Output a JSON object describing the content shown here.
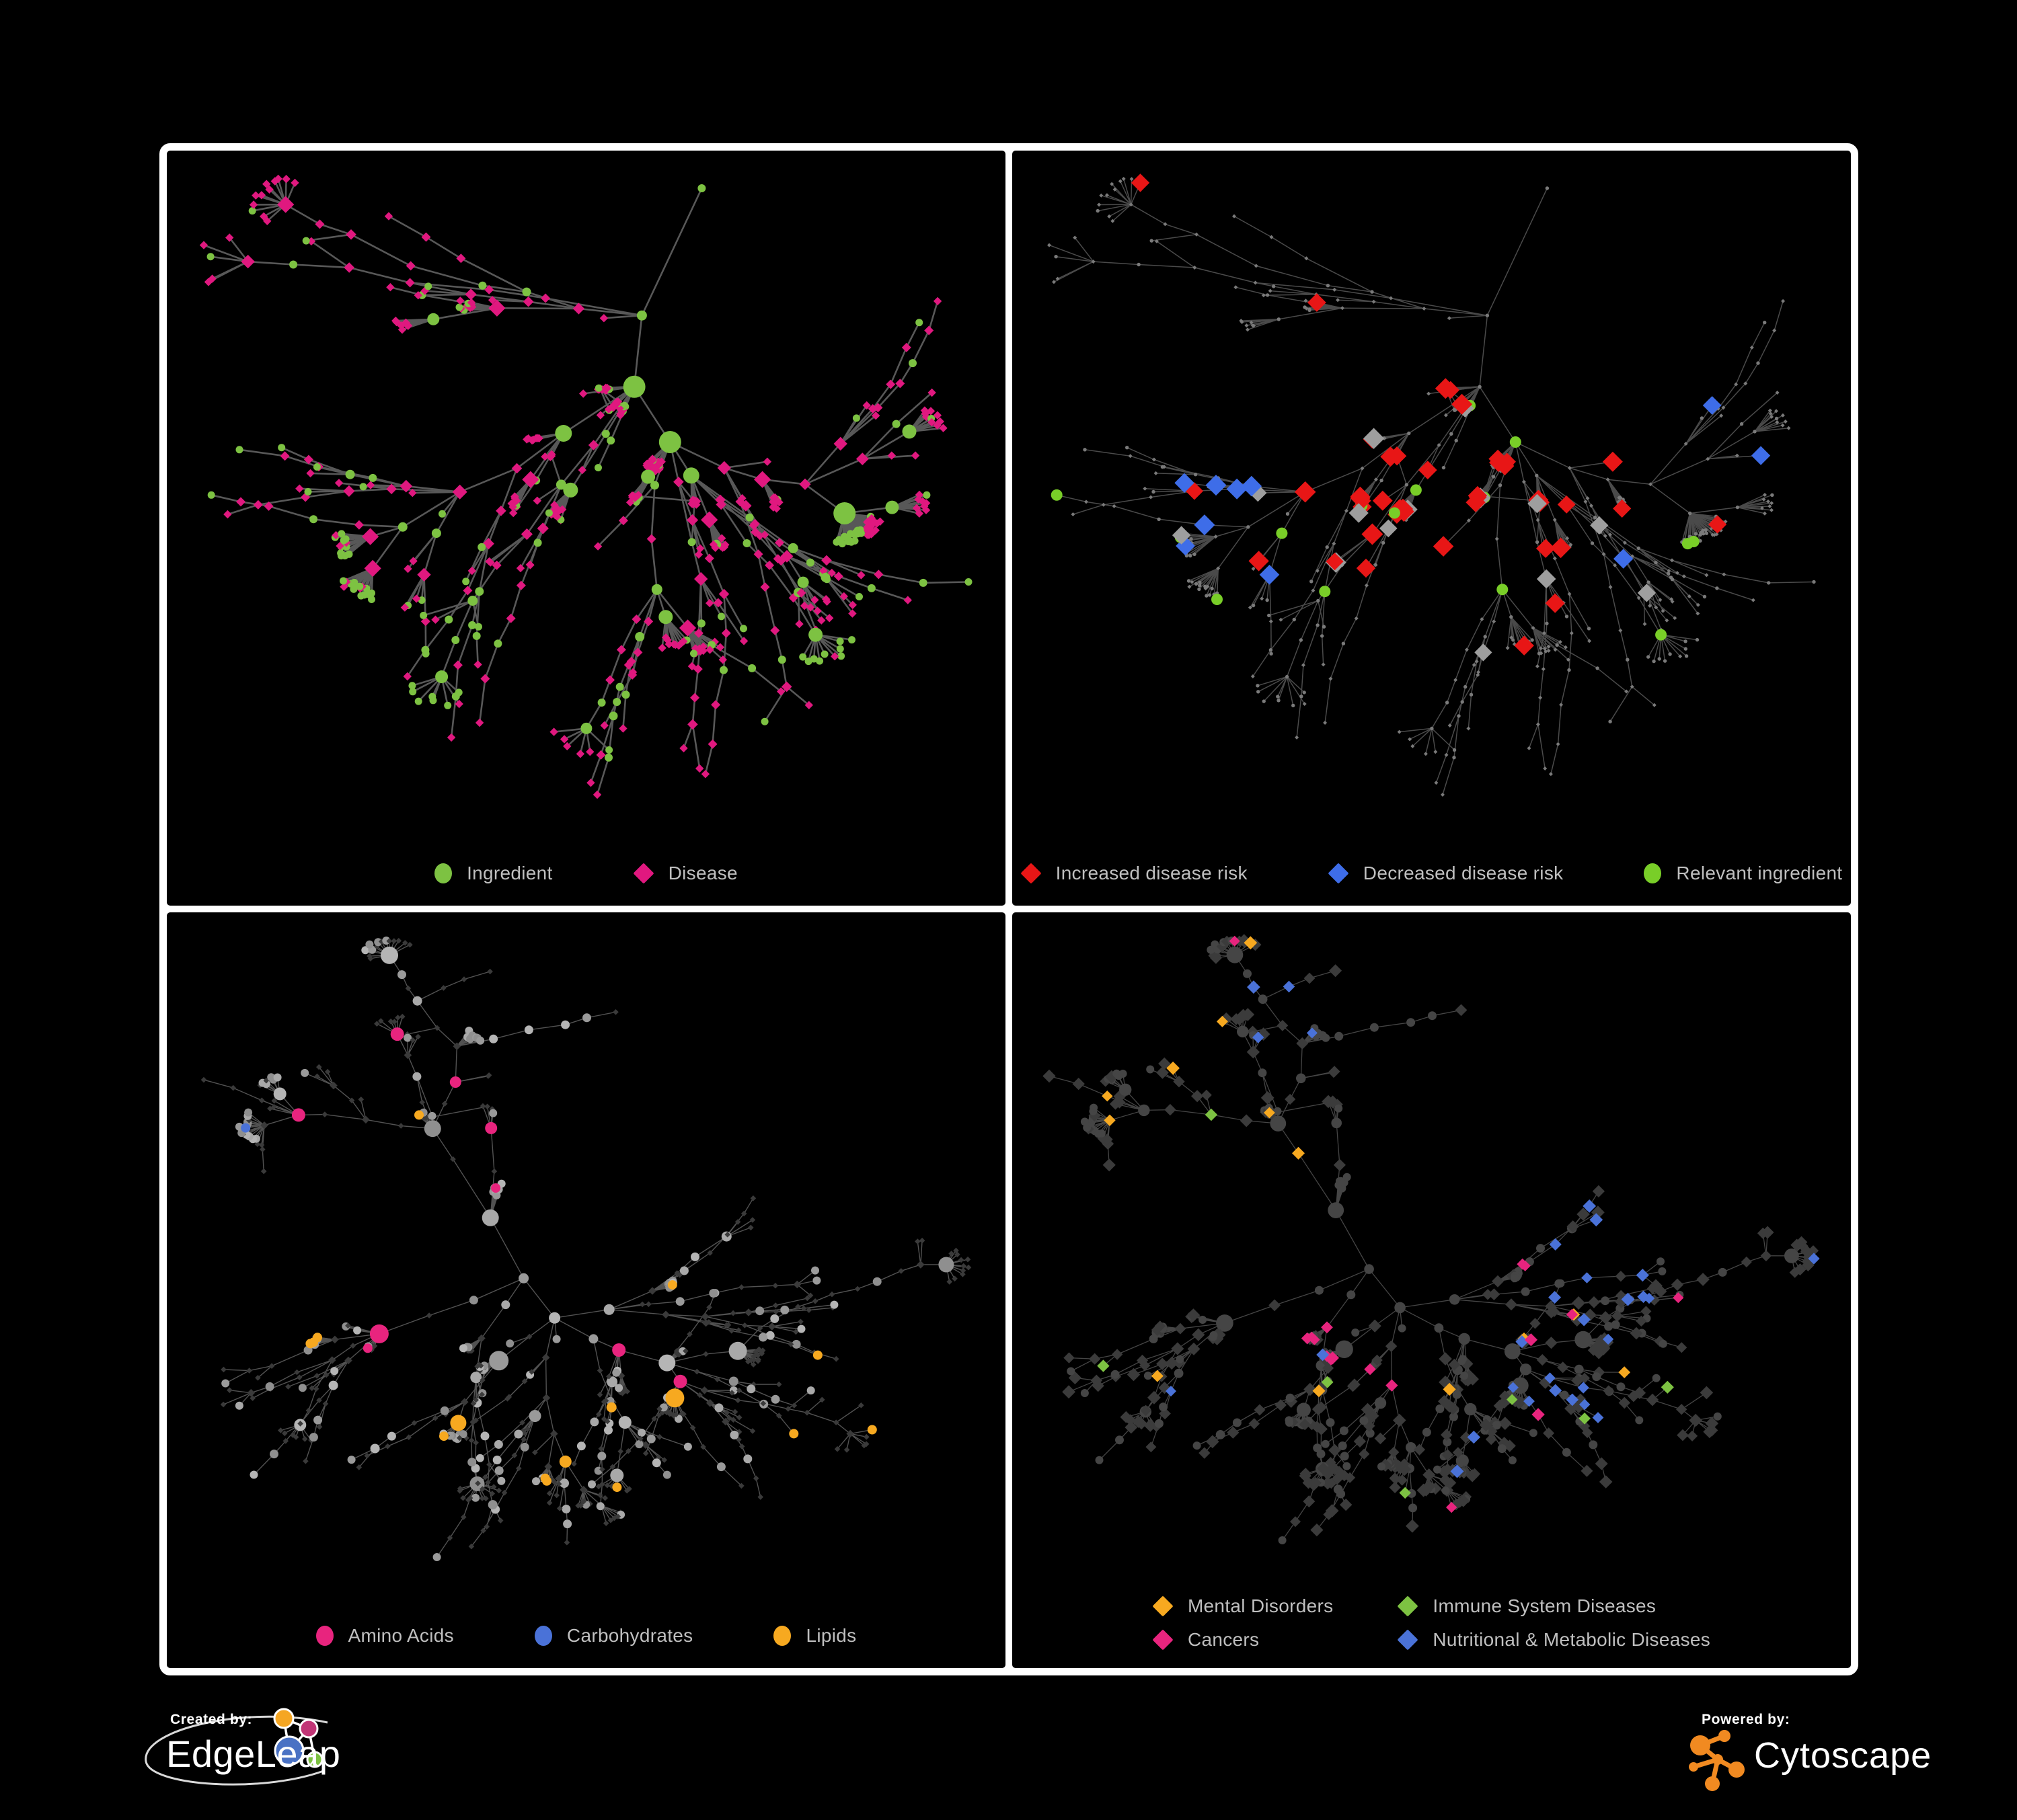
{
  "legend_text_color": "#BFBFBF",
  "graphs": {
    "g1": {
      "seed": 20,
      "nodes": 560,
      "cross": 16
    },
    "g2": {
      "seed": 63,
      "nodes": 620,
      "cross": 20
    }
  },
  "panels": [
    {
      "name": "ingredient-disease",
      "graph": "g1",
      "style": "types",
      "colors": {
        "ingredient": "#7DC242",
        "disease": "#E0187F",
        "edge": "#5D5D5D"
      },
      "legend": [
        {
          "label": "Ingredient",
          "shape": "circle",
          "color": "#7DC242"
        },
        {
          "label": "Disease",
          "shape": "diamond",
          "color": "#E0187F"
        }
      ]
    },
    {
      "name": "disease-risk",
      "graph": "g1",
      "style": "risk",
      "colors": {
        "increased": "#E81616",
        "decreased": "#3E6DE8",
        "no_change": "#9E9E9E",
        "relevant": "#79CE28",
        "base": "#7A7A7A",
        "edge": "#585858"
      },
      "legend": [
        {
          "label": "Increased disease risk",
          "shape": "diamond",
          "color": "#E81616"
        },
        {
          "label": "Decreased disease risk",
          "shape": "diamond",
          "color": "#3E6DE8"
        },
        {
          "label": "Relevant ingredient",
          "shape": "circle",
          "color": "#79CE28"
        }
      ]
    },
    {
      "name": "nutrient-classes",
      "graph": "g2",
      "style": "nutrients",
      "colors": {
        "amino_acids": "#E8247E",
        "carbohydrates": "#4A72D8",
        "lipids": "#F7A920",
        "ingredient_base": "#9A9A9A",
        "disease_base": "#3A3A3A",
        "edge": "#969696"
      },
      "legend": [
        {
          "label": "Amino Acids",
          "shape": "circle",
          "color": "#E8247E"
        },
        {
          "label": "Carbohydrates",
          "shape": "circle",
          "color": "#4A72D8"
        },
        {
          "label": "Lipids",
          "shape": "circle",
          "color": "#F7A920"
        }
      ]
    },
    {
      "name": "disease-categories",
      "graph": "g2",
      "style": "categories",
      "legend_layout": "grid",
      "colors": {
        "mental": "#F7A920",
        "immune": "#7DC242",
        "cancers": "#E8247E",
        "nutritional": "#4A72D8",
        "disease_base": "#3B3B3B",
        "ingredient_base": "#454545",
        "edge": "#8A8A8A"
      },
      "legend": [
        {
          "label": "Mental Disorders",
          "shape": "diamond",
          "color": "#F7A920"
        },
        {
          "label": "Immune System Diseases",
          "shape": "diamond",
          "color": "#7DC242"
        },
        {
          "label": "Cancers",
          "shape": "diamond",
          "color": "#E8247E"
        },
        {
          "label": "Nutritional & Metabolic Diseases",
          "shape": "diamond",
          "color": "#4A72D8"
        }
      ]
    }
  ],
  "footer": {
    "created_by": "Created by:",
    "created_brand": "EdgeLeap",
    "powered_by": "Powered by:",
    "powered_brand": "Cytoscape",
    "edgeleap_colors": {
      "orange": "#F5A623",
      "magenta": "#C13576",
      "blue": "#4A72C4",
      "green": "#7DC242"
    },
    "cytoscape_color": "#F18A21"
  }
}
